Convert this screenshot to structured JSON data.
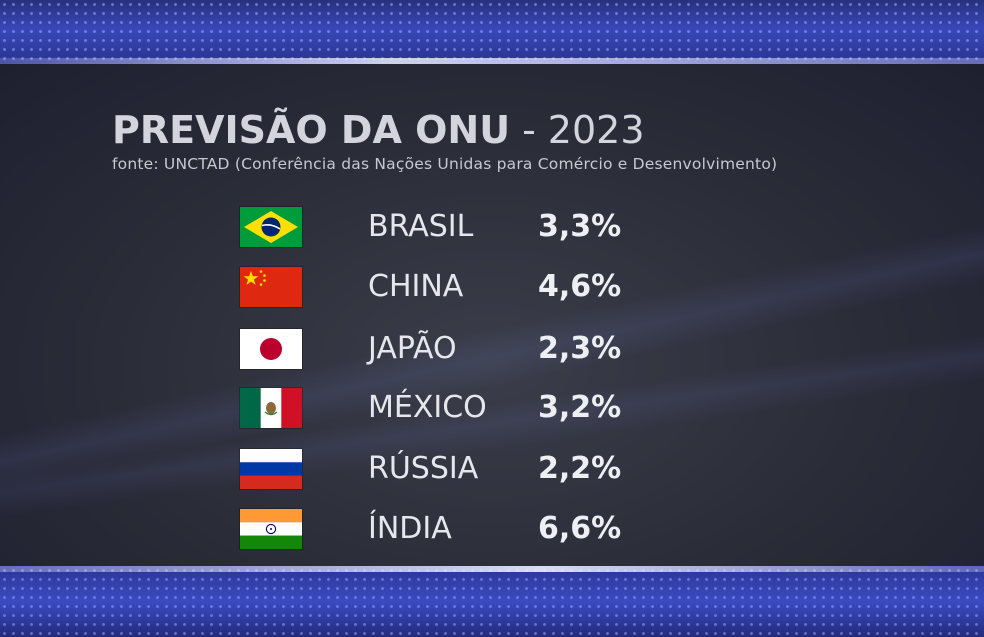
{
  "title": {
    "main": "PREVISÃO DA ONU",
    "separator": "-",
    "year": "2023"
  },
  "source": "fonte: UNCTAD (Conferência das Nações Unidas para Comércio e Desenvolvimento)",
  "rows": [
    {
      "flag": "brazil-flag-icon",
      "country": "BRASIL",
      "value": "3,3%"
    },
    {
      "flag": "china-flag-icon",
      "country": "CHINA",
      "value": "4,6%"
    },
    {
      "flag": "japan-flag-icon",
      "country": "JAPÃO",
      "value": "2,3%"
    },
    {
      "flag": "mexico-flag-icon",
      "country": "MÉXICO",
      "value": "3,2%"
    },
    {
      "flag": "russia-flag-icon",
      "country": "RÚSSIA",
      "value": "2,2%"
    },
    {
      "flag": "india-flag-icon",
      "country": "ÍNDIA",
      "value": "6,6%"
    }
  ],
  "colors": {
    "band": "#3848b8",
    "panel": "#2e3040",
    "text": "#e6e7ec"
  }
}
